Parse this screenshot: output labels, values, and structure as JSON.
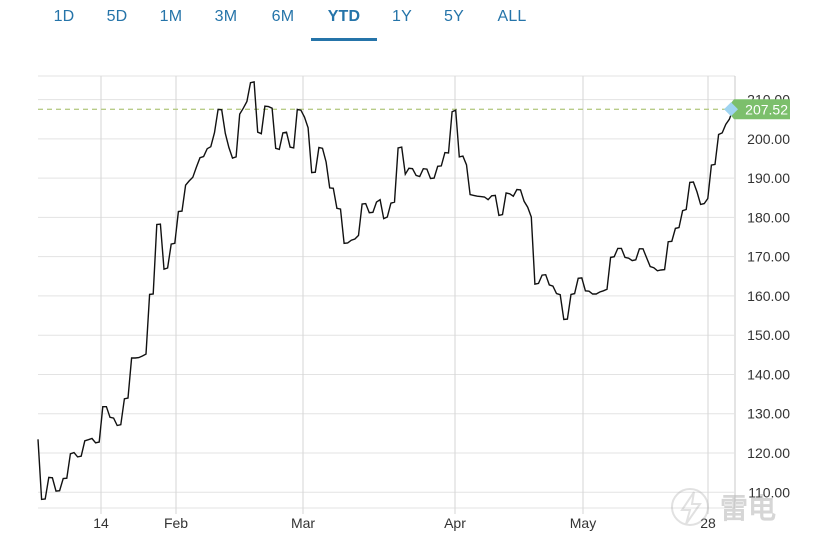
{
  "tabs": [
    {
      "label": "1D",
      "active": false
    },
    {
      "label": "5D",
      "active": false
    },
    {
      "label": "1M",
      "active": false
    },
    {
      "label": "3M",
      "active": false
    },
    {
      "label": "6M",
      "active": false
    },
    {
      "label": "YTD",
      "active": true
    },
    {
      "label": "1Y",
      "active": false
    },
    {
      "label": "5Y",
      "active": false
    },
    {
      "label": "ALL",
      "active": false
    }
  ],
  "watermark": {
    "text": "雷电"
  },
  "colors": {
    "tab_text": "#2574a9",
    "line": "#111111",
    "grid": "#e3e3e3",
    "reference_line": "#b8cc88",
    "price_badge": "#7cbf6c",
    "price_marker": "#9fd4f0"
  },
  "chart_data": {
    "type": "line",
    "title": "",
    "xlabel": "",
    "ylabel": "",
    "ylim": [
      106,
      216
    ],
    "y_ticks": [
      "110.00",
      "120.00",
      "130.00",
      "140.00",
      "150.00",
      "160.00",
      "170.00",
      "180.00",
      "190.00",
      "200.00",
      "210.00"
    ],
    "x_ticks": [
      "14",
      "Feb",
      "Mar",
      "Apr",
      "May",
      "28"
    ],
    "last_price": "207.52",
    "grid": true,
    "series": [
      {
        "values": [
          123.5,
          108.2,
          108.3,
          113.8,
          113.7,
          110.3,
          110.4,
          113.5,
          113.6,
          119.8,
          120.1,
          119.0,
          119.2,
          123.1,
          123.4,
          123.7,
          122.6,
          122.8,
          131.8,
          131.8,
          129.1,
          128.9,
          127.0,
          127.2,
          133.8,
          134.0,
          144.2,
          144.2,
          144.3,
          144.7,
          145.2,
          160.4,
          160.5,
          178.2,
          178.3,
          166.8,
          167.1,
          173.2,
          173.4,
          181.5,
          181.6,
          188.2,
          189.3,
          190.2,
          192.8,
          195.2,
          195.5,
          197.5,
          198.0,
          201.6,
          207.5,
          207.4,
          201.4,
          197.8,
          195.1,
          195.4,
          206.3,
          207.8,
          209.5,
          214.3,
          214.5,
          201.7,
          201.3,
          208.3,
          208.2,
          207.8,
          197.6,
          197.3,
          201.5,
          201.7,
          197.9,
          197.7,
          207.5,
          207.3,
          205.5,
          202.8,
          191.4,
          191.5,
          197.8,
          197.6,
          194.1,
          187.5,
          187.4,
          182.3,
          182.1,
          173.4,
          173.5,
          174.2,
          174.5,
          175.4,
          183.4,
          183.5,
          181.2,
          181.3,
          183.9,
          184.5,
          179.7,
          180.1,
          183.6,
          183.9,
          197.7,
          197.9,
          191.0,
          192.5,
          192.4,
          190.7,
          190.4,
          192.4,
          192.3,
          189.9,
          190.0,
          193.0,
          193.1,
          196.5,
          196.4,
          206.9,
          207.3,
          195.4,
          195.6,
          193.4,
          185.8,
          185.6,
          185.4,
          185.3,
          185.2,
          184.5,
          185.5,
          185.6,
          180.5,
          180.7,
          186.2,
          186.0,
          185.4,
          187.1,
          187.0,
          184.1,
          182.6,
          180.1,
          163.0,
          163.2,
          165.3,
          165.4,
          162.8,
          162.5,
          160.6,
          160.3,
          154.0,
          154.1,
          160.4,
          160.6,
          164.5,
          164.6,
          161.3,
          161.2,
          160.5,
          160.5,
          161.0,
          161.3,
          161.7,
          169.8,
          170.0,
          172.1,
          172.1,
          169.8,
          169.6,
          169.0,
          169.2,
          172.0,
          172.0,
          169.7,
          167.5,
          167.2,
          166.4,
          166.6,
          166.7,
          173.8,
          173.9,
          177.2,
          177.4,
          181.7,
          182.0,
          188.9,
          189.0,
          186.5,
          183.3,
          183.5,
          184.8,
          193.3,
          193.5,
          201.1,
          201.5,
          203.7,
          205.0,
          207.52
        ]
      }
    ]
  }
}
